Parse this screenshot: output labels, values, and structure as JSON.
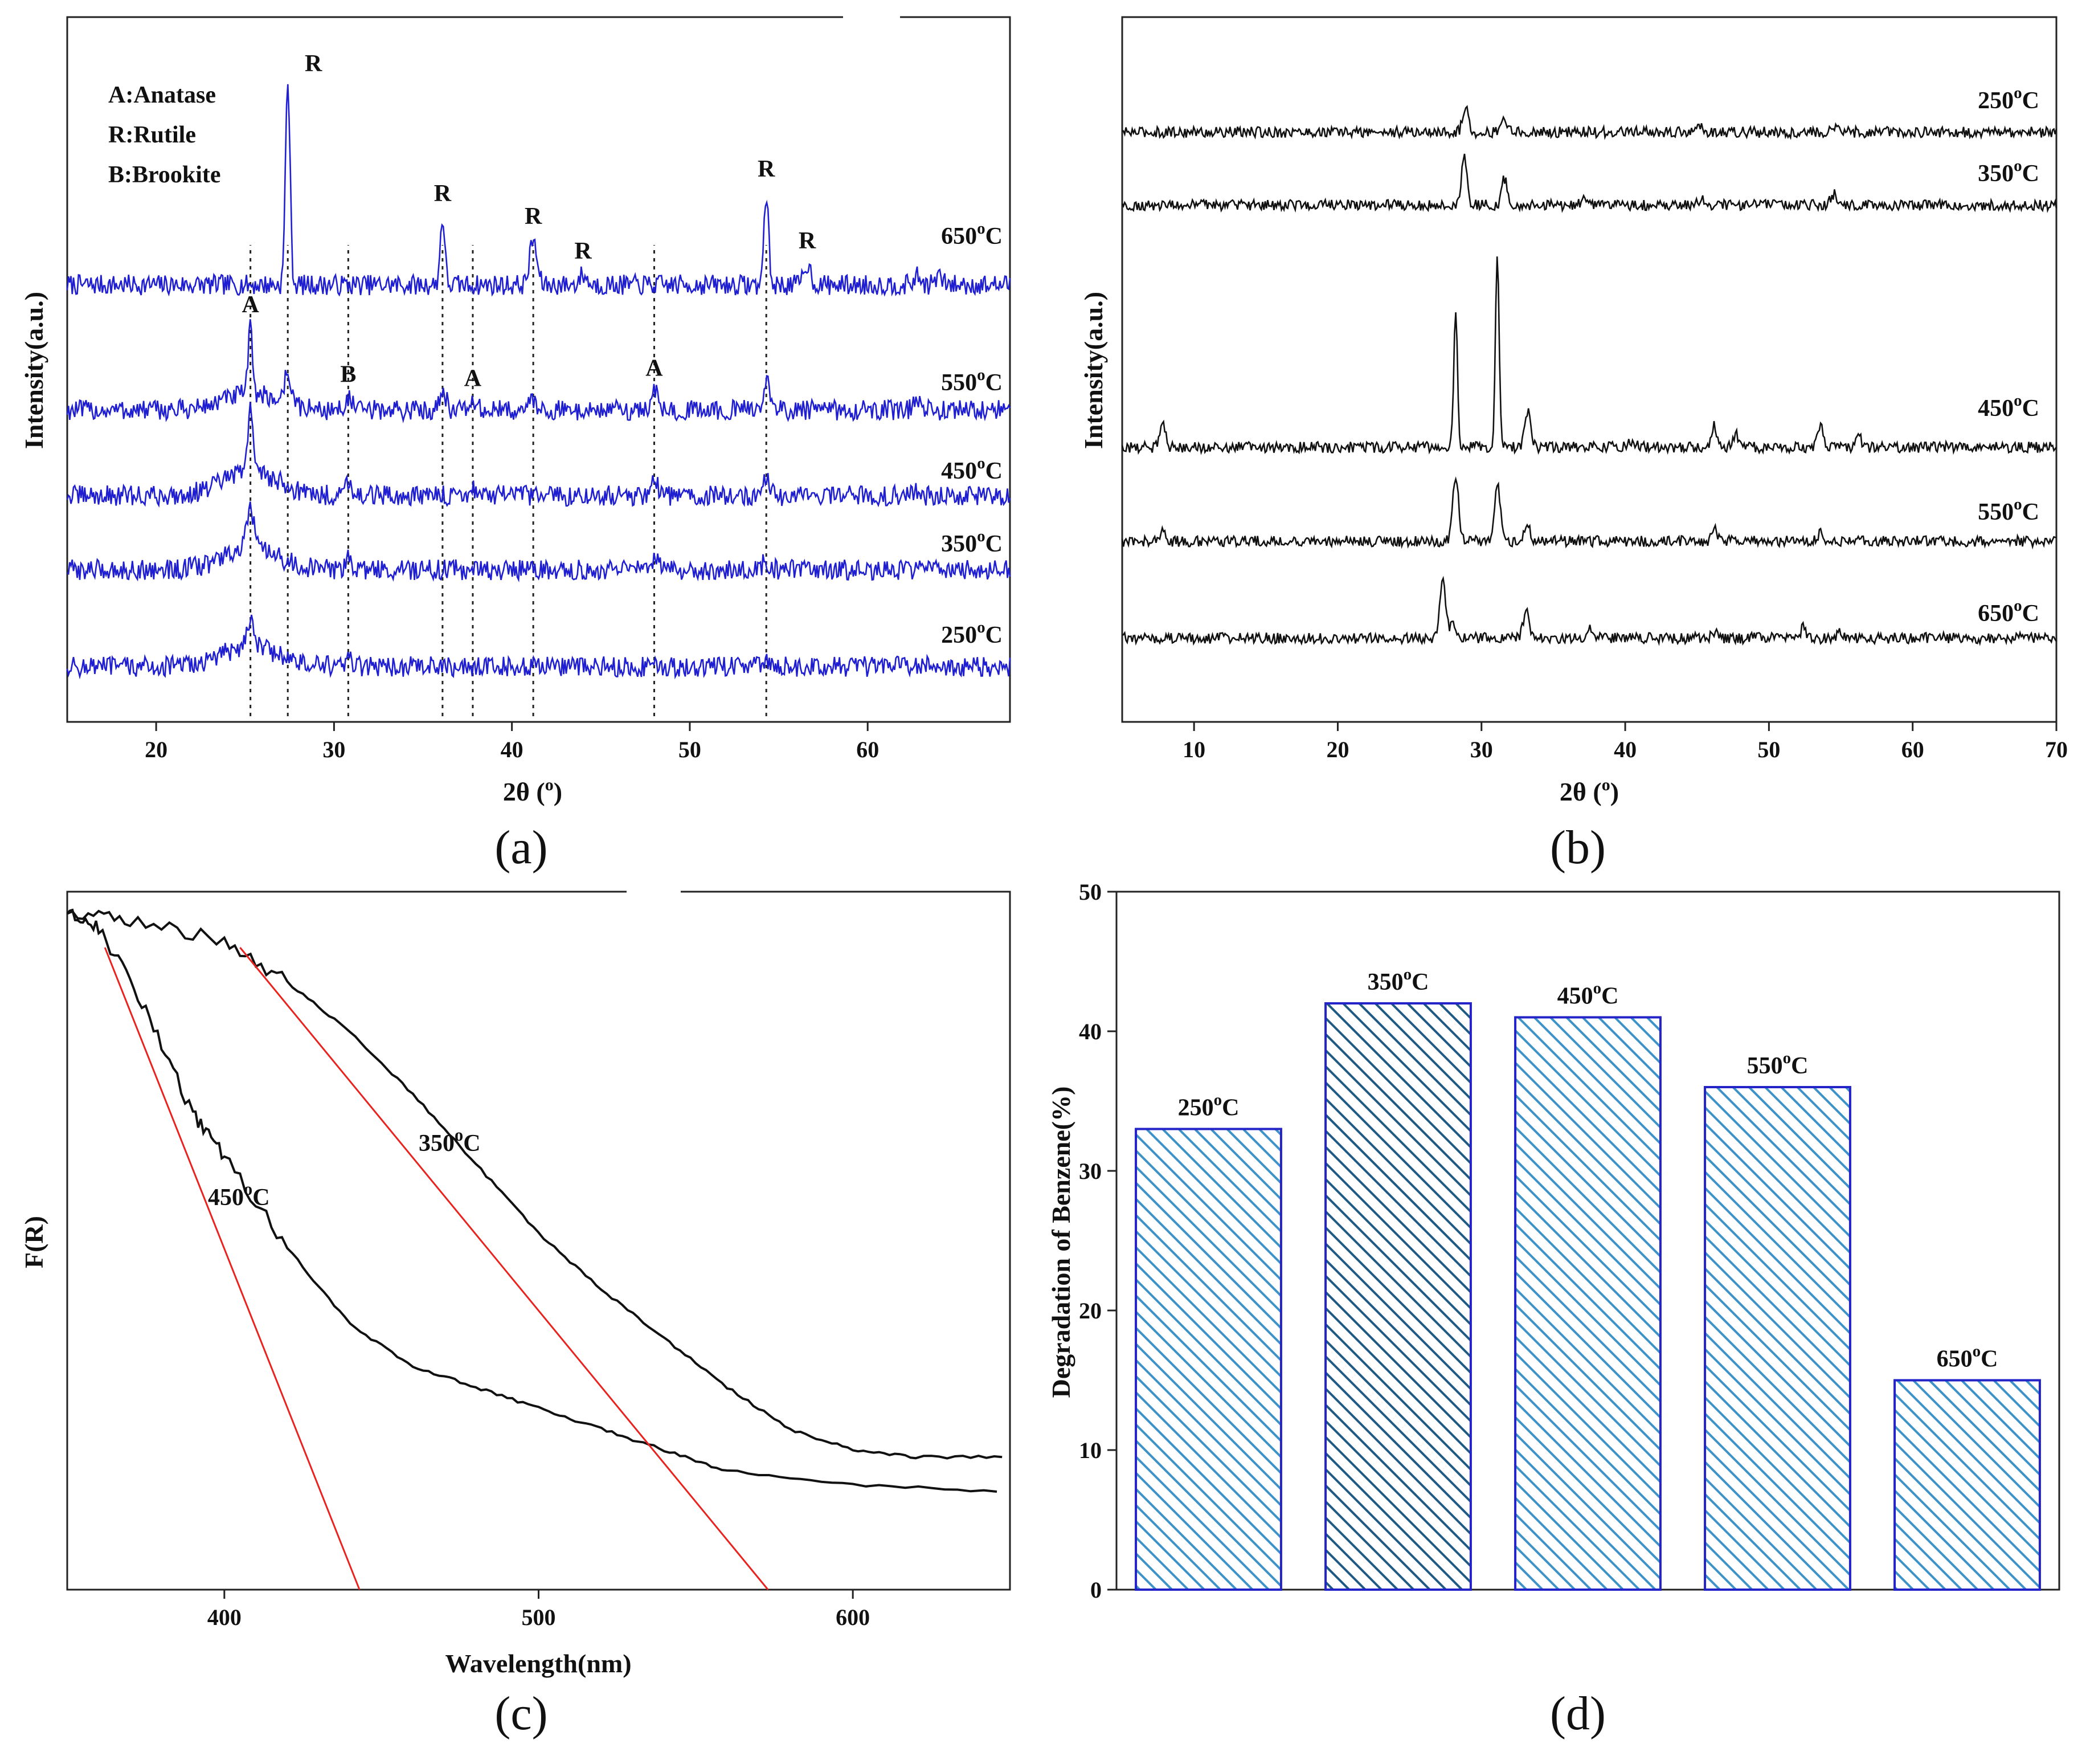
{
  "chart_data": [
    {
      "panel": "(a)",
      "type": "line",
      "xlabel": "2θ (",
      "xlabel_degree": "o",
      "xlabel_close": ")",
      "ylabel": "Intensity(a.u.)",
      "xlim": [
        15,
        68
      ],
      "xticks": [
        20,
        30,
        40,
        50,
        60
      ],
      "series_color": "#1f1fd1",
      "legend_lines": [
        "A:Anatase",
        "R:Rutile",
        "B:Brookite"
      ],
      "series": [
        {
          "label_main": "650",
          "label_unit": "C",
          "peaks": [
            [
              27.4,
              1.0
            ],
            [
              36.1,
              0.33
            ],
            [
              41.2,
              0.22
            ],
            [
              44.0,
              0.05
            ],
            [
              54.3,
              0.45
            ],
            [
              56.6,
              0.1
            ],
            [
              62.8,
              0.04
            ],
            [
              64.0,
              0.04
            ]
          ],
          "amorphous": [
            [
              25.3,
              0.0
            ]
          ]
        },
        {
          "label_main": "550",
          "label_unit": "C",
          "peaks": [
            [
              25.3,
              0.32
            ],
            [
              27.4,
              0.15
            ],
            [
              30.8,
              0.06
            ],
            [
              36.1,
              0.1
            ],
            [
              37.8,
              0.04
            ],
            [
              41.2,
              0.05
            ],
            [
              48.0,
              0.09
            ],
            [
              54.3,
              0.14
            ],
            [
              62.7,
              0.04
            ]
          ],
          "amorphous": [
            [
              25.3,
              0.08
            ]
          ]
        },
        {
          "label_main": "450",
          "label_unit": "C",
          "peaks": [
            [
              25.3,
              0.35
            ],
            [
              30.8,
              0.08
            ],
            [
              37.8,
              0.04
            ],
            [
              48.0,
              0.08
            ],
            [
              54.3,
              0.07
            ],
            [
              62.7,
              0.03
            ]
          ],
          "amorphous": [
            [
              25.3,
              0.12
            ]
          ]
        },
        {
          "label_main": "350",
          "label_unit": "C",
          "peaks": [
            [
              25.3,
              0.2
            ],
            [
              30.8,
              0.05
            ],
            [
              48.0,
              0.05
            ],
            [
              54.3,
              0.04
            ]
          ],
          "amorphous": [
            [
              25.3,
              0.1
            ]
          ]
        },
        {
          "label_main": "250",
          "label_unit": "C",
          "peaks": [
            [
              25.3,
              0.14
            ],
            [
              30.8,
              0.03
            ],
            [
              48.0,
              0.03
            ],
            [
              54.3,
              0.03
            ]
          ],
          "amorphous": [
            [
              25.3,
              0.1
            ]
          ]
        }
      ],
      "reference_lines_x": [
        25.3,
        27.4,
        30.8,
        36.1,
        37.8,
        41.2,
        48.0,
        54.3
      ],
      "peak_letters": [
        {
          "text": "R",
          "x": 27.4,
          "series": 0
        },
        {
          "text": "R",
          "x": 36.1,
          "series": 0
        },
        {
          "text": "R",
          "x": 41.2,
          "series": 0
        },
        {
          "text": "R",
          "x": 44.0,
          "series": 0
        },
        {
          "text": "R",
          "x": 54.3,
          "series": 0
        },
        {
          "text": "R",
          "x": 56.6,
          "series": 0
        },
        {
          "text": "A",
          "x": 25.3,
          "series": 1
        },
        {
          "text": "B",
          "x": 30.8,
          "series": 1
        },
        {
          "text": "A",
          "x": 37.8,
          "series": 1
        },
        {
          "text": "A",
          "x": 48.0,
          "series": 1
        }
      ]
    },
    {
      "panel": "(b)",
      "type": "line",
      "xlabel": "2θ (",
      "xlabel_degree": "o",
      "xlabel_close": ")",
      "ylabel": "Intensity(a.u.)",
      "xlim": [
        5,
        70
      ],
      "xticks": [
        10,
        20,
        30,
        40,
        50,
        60,
        70
      ],
      "series_color": "#111111",
      "series": [
        {
          "label_main": "250",
          "label_unit": "C",
          "peaks": [
            [
              28.9,
              0.12
            ],
            [
              31.6,
              0.07
            ],
            [
              45.3,
              0.03
            ],
            [
              54.5,
              0.03
            ]
          ]
        },
        {
          "label_main": "350",
          "label_unit": "C",
          "peaks": [
            [
              28.8,
              0.22
            ],
            [
              31.6,
              0.12
            ],
            [
              37.1,
              0.03
            ],
            [
              45.3,
              0.03
            ],
            [
              54.5,
              0.05
            ]
          ]
        },
        {
          "label_main": "450",
          "label_unit": "C",
          "peaks": [
            [
              7.8,
              0.12
            ],
            [
              28.2,
              0.64
            ],
            [
              31.1,
              0.9
            ],
            [
              33.2,
              0.17
            ],
            [
              46.2,
              0.1
            ],
            [
              47.7,
              0.06
            ],
            [
              53.6,
              0.1
            ],
            [
              56.2,
              0.06
            ],
            [
              40.5,
              0.03
            ]
          ]
        },
        {
          "label_main": "550",
          "label_unit": "C",
          "peaks": [
            [
              7.8,
              0.05
            ],
            [
              28.2,
              0.3
            ],
            [
              31.1,
              0.27
            ],
            [
              33.2,
              0.08
            ],
            [
              46.2,
              0.06
            ],
            [
              53.6,
              0.04
            ]
          ]
        },
        {
          "label_main": "650",
          "label_unit": "C",
          "peaks": [
            [
              27.3,
              0.26
            ],
            [
              28.0,
              0.08
            ],
            [
              33.1,
              0.13
            ],
            [
              37.5,
              0.04
            ],
            [
              46.2,
              0.03
            ],
            [
              52.4,
              0.05
            ],
            [
              55.0,
              0.03
            ]
          ]
        }
      ]
    },
    {
      "panel": "(c)",
      "type": "line",
      "xlabel": "Wavelength(nm)",
      "ylabel": "F(R)",
      "xlim": [
        350,
        650
      ],
      "xticks": [
        400,
        500,
        600
      ],
      "series": [
        {
          "label_main": "350",
          "label_unit": "C",
          "points": [
            [
              350,
              0.97
            ],
            [
              370,
              0.96
            ],
            [
              400,
              0.93
            ],
            [
              420,
              0.87
            ],
            [
              440,
              0.8
            ],
            [
              460,
              0.71
            ],
            [
              480,
              0.61
            ],
            [
              500,
              0.51
            ],
            [
              520,
              0.43
            ],
            [
              540,
              0.36
            ],
            [
              560,
              0.29
            ],
            [
              580,
              0.23
            ],
            [
              600,
              0.2
            ],
            [
              620,
              0.19
            ],
            [
              650,
              0.19
            ]
          ]
        },
        {
          "label_main": "450",
          "label_unit": "C",
          "points": [
            [
              350,
              0.97
            ],
            [
              360,
              0.95
            ],
            [
              375,
              0.83
            ],
            [
              390,
              0.68
            ],
            [
              400,
              0.62
            ],
            [
              420,
              0.49
            ],
            [
              440,
              0.38
            ],
            [
              460,
              0.32
            ],
            [
              480,
              0.29
            ],
            [
              500,
              0.26
            ],
            [
              520,
              0.23
            ],
            [
              540,
              0.2
            ],
            [
              560,
              0.17
            ],
            [
              600,
              0.15
            ],
            [
              650,
              0.14
            ]
          ]
        }
      ],
      "tangents": [
        {
          "from": [
            405,
            0.92
          ],
          "to": [
            573,
            0.0
          ]
        },
        {
          "from": [
            362,
            0.92
          ],
          "to": [
            443,
            0.0
          ]
        }
      ],
      "tangent_color": "#e8231f"
    },
    {
      "panel": "(d)",
      "type": "bar",
      "ylabel": "Degradation of Benzene(%)",
      "ylim": [
        0,
        50
      ],
      "yticks": [
        0,
        10,
        20,
        30,
        40,
        50
      ],
      "bar_stroke": "#2323c8",
      "bar_fill": "#3d93c8",
      "bar_fill_dark": "#1f5a84",
      "bars": [
        {
          "label_main": "250",
          "label_unit": "C",
          "value": 33,
          "dark": false
        },
        {
          "label_main": "350",
          "label_unit": "C",
          "value": 42,
          "dark": true
        },
        {
          "label_main": "450",
          "label_unit": "C",
          "value": 41,
          "dark": false
        },
        {
          "label_main": "550",
          "label_unit": "C",
          "value": 36,
          "dark": false
        },
        {
          "label_main": "650",
          "label_unit": "C",
          "value": 15,
          "dark": false
        }
      ]
    }
  ],
  "degree_symbol": "o"
}
